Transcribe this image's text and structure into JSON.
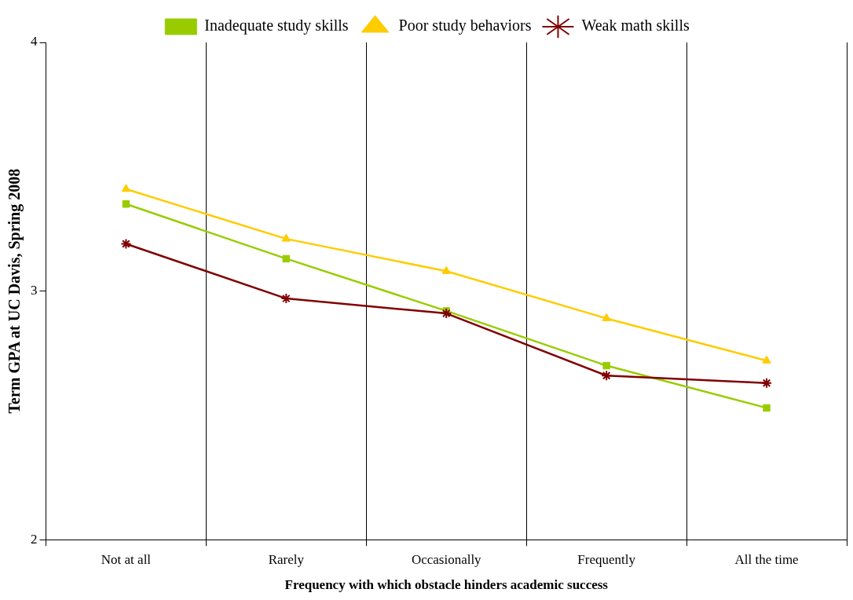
{
  "chart_data": {
    "type": "line",
    "xlabel": "Frequency with which obstacle hinders academic success",
    "ylabel": "Term GPA at UC Davis, Spring 2008",
    "categories": [
      "Not at all",
      "Rarely",
      "Occasionally",
      "Frequently",
      "All the time"
    ],
    "series": [
      {
        "name": "Inadequate study skills",
        "color": "#99cc00",
        "marker": "square",
        "values": [
          3.35,
          3.13,
          2.92,
          2.7,
          2.53
        ]
      },
      {
        "name": "Poor study behaviors",
        "color": "#ffcc00",
        "marker": "triangle",
        "values": [
          3.41,
          3.21,
          3.08,
          2.89,
          2.72
        ]
      },
      {
        "name": "Weak math skills",
        "color": "#800000",
        "marker": "cross",
        "values": [
          3.19,
          2.97,
          2.91,
          2.66,
          2.63
        ]
      }
    ],
    "ylim": [
      2,
      4
    ],
    "yticks": [
      2,
      3,
      4
    ],
    "grid": "x",
    "legend": "top",
    "line_style": "solid"
  }
}
